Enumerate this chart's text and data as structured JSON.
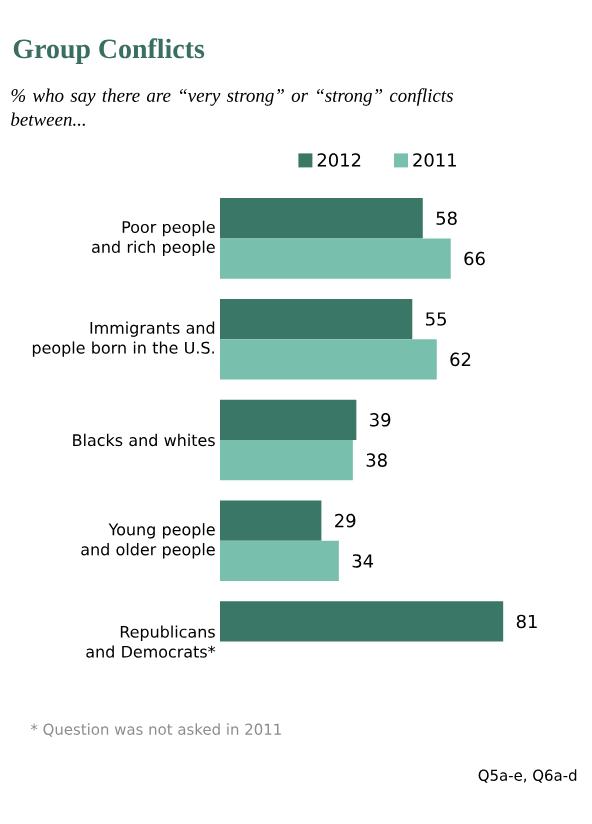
{
  "chart_data": {
    "type": "bar",
    "orientation": "horizontal",
    "title": "Group Conflicts",
    "subtitle": "% who say there are “very strong” or “strong” conflicts between...",
    "categories": [
      "Poor people and rich people",
      "Immigrants and people born in the U.S.",
      "Blacks and whites",
      "Young people and older people",
      "Republicans and Democrats*"
    ],
    "series": [
      {
        "name": "2012",
        "color": "#3a7767",
        "values": [
          58,
          55,
          39,
          29,
          81
        ]
      },
      {
        "name": "2011",
        "color": "#78bfae",
        "values": [
          66,
          62,
          38,
          34,
          null
        ]
      }
    ],
    "data_labels": true,
    "legend": "top",
    "annotations": [
      "* Question was not asked in 2011",
      "Q5a-e, Q6a-d"
    ]
  }
}
